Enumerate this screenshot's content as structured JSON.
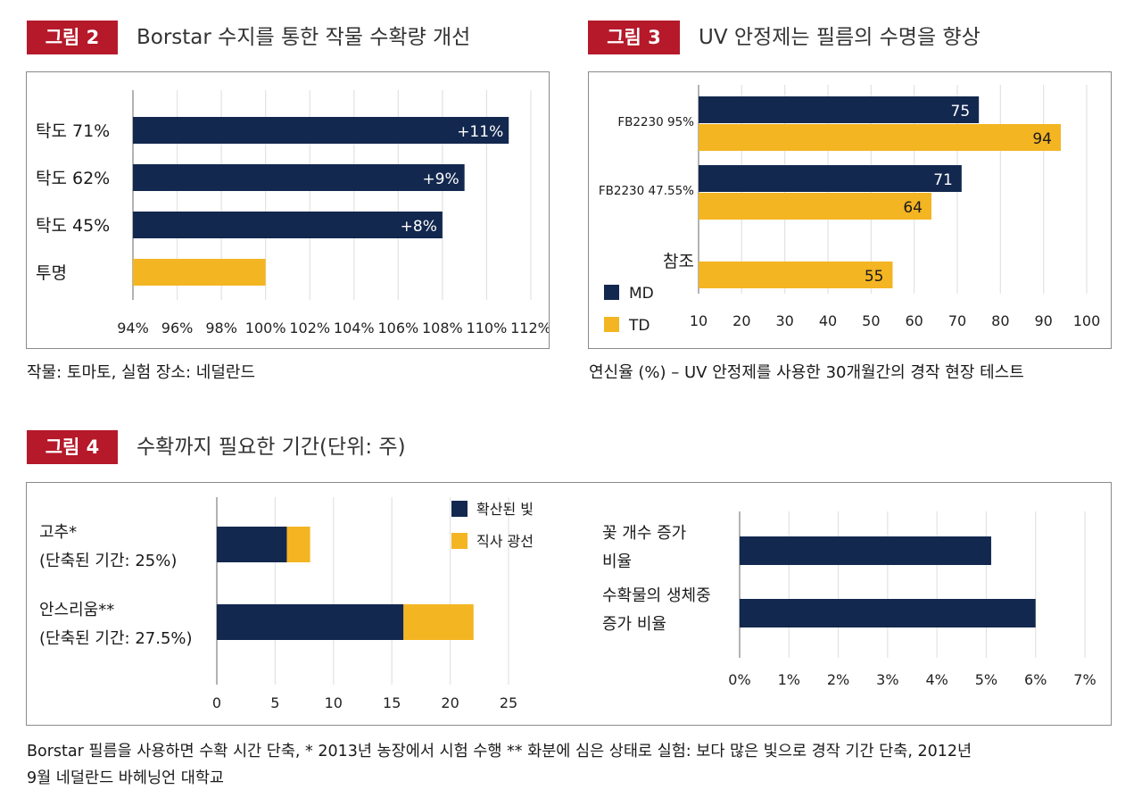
{
  "colors": {
    "navy": "#13284f",
    "gold": "#f4b523",
    "badge": "#b5192a",
    "grid": "#e2e2e2"
  },
  "fig2": {
    "badge": "그림 2",
    "title": "Borstar 수지를 통한 작물 수확량 개선",
    "caption": "작물: 토마토, 실험 장소: 네덜란드"
  },
  "fig3": {
    "badge": "그림 3",
    "title": "UV 안정제는 필름의 수명을 향상",
    "caption": "연신율 (%) – UV 안정제를 사용한 30개월간의 경작 현장 테스트"
  },
  "fig4": {
    "badge": "그림 4",
    "title": "수확까지 필요한 기간(단위: 주)",
    "caption_line1": "Borstar 필름을 사용하면 수확 시간 단축, * 2013년 농장에서 시험 수행 ** 화분에 심은 상태로 실험: 보다 많은 빛으로 경작 기간 단축, 2012년",
    "caption_line2": "9월 네덜란드 바헤닝언 대학교"
  },
  "chart_data": [
    {
      "id": "fig2",
      "type": "bar",
      "orientation": "horizontal",
      "categories": [
        "탁도 71%",
        "탁도 62%",
        "탁도 45%",
        "투명"
      ],
      "values": [
        111,
        109,
        108,
        100
      ],
      "data_labels": [
        "+11%",
        "+9%",
        "+8%",
        ""
      ],
      "bar_colors": [
        "navy",
        "navy",
        "navy",
        "gold"
      ],
      "xlim": [
        94,
        112
      ],
      "xticks": [
        "94%",
        "96%",
        "98%",
        "100%",
        "102%",
        "104%",
        "106%",
        "108%",
        "110%",
        "112%"
      ],
      "grid": true
    },
    {
      "id": "fig3",
      "type": "bar",
      "orientation": "horizontal",
      "categories": [
        "FB2230 95%",
        "FB2230 47.55%",
        "참조"
      ],
      "series": [
        {
          "name": "MD",
          "color": "navy",
          "values": [
            75,
            71,
            10
          ]
        },
        {
          "name": "TD",
          "color": "gold",
          "values": [
            94,
            64,
            55
          ]
        }
      ],
      "xlim": [
        10,
        100
      ],
      "xticks": [
        "10",
        "20",
        "30",
        "40",
        "50",
        "60",
        "70",
        "80",
        "90",
        "100"
      ],
      "legend": "bottom-left",
      "grid": true
    },
    {
      "id": "fig4a",
      "type": "bar",
      "orientation": "horizontal",
      "stacked": true,
      "categories": [
        {
          "line1": "고추*",
          "line2": "(단축된 기간: 25%)"
        },
        {
          "line1": "안스리움**",
          "line2": "(단축된 기간: 27.5%)"
        }
      ],
      "series": [
        {
          "name": "확산된 빛",
          "color": "navy",
          "values": [
            6,
            16
          ]
        },
        {
          "name": "직사 광선",
          "color": "gold",
          "values": [
            2,
            6
          ]
        }
      ],
      "xlim": [
        0,
        25
      ],
      "xticks": [
        "0",
        "5",
        "10",
        "15",
        "20",
        "25"
      ],
      "legend": "top-right",
      "grid": true
    },
    {
      "id": "fig4b",
      "type": "bar",
      "orientation": "horizontal",
      "categories": [
        {
          "line1": "꽃 개수 증가",
          "line2": "비율"
        },
        {
          "line1": "수확물의 생체중",
          "line2": "증가 비율"
        }
      ],
      "values": [
        5.1,
        6.0
      ],
      "xlim": [
        0,
        7
      ],
      "xticks": [
        "0%",
        "1%",
        "2%",
        "3%",
        "4%",
        "5%",
        "6%",
        "7%"
      ],
      "grid": true
    }
  ]
}
